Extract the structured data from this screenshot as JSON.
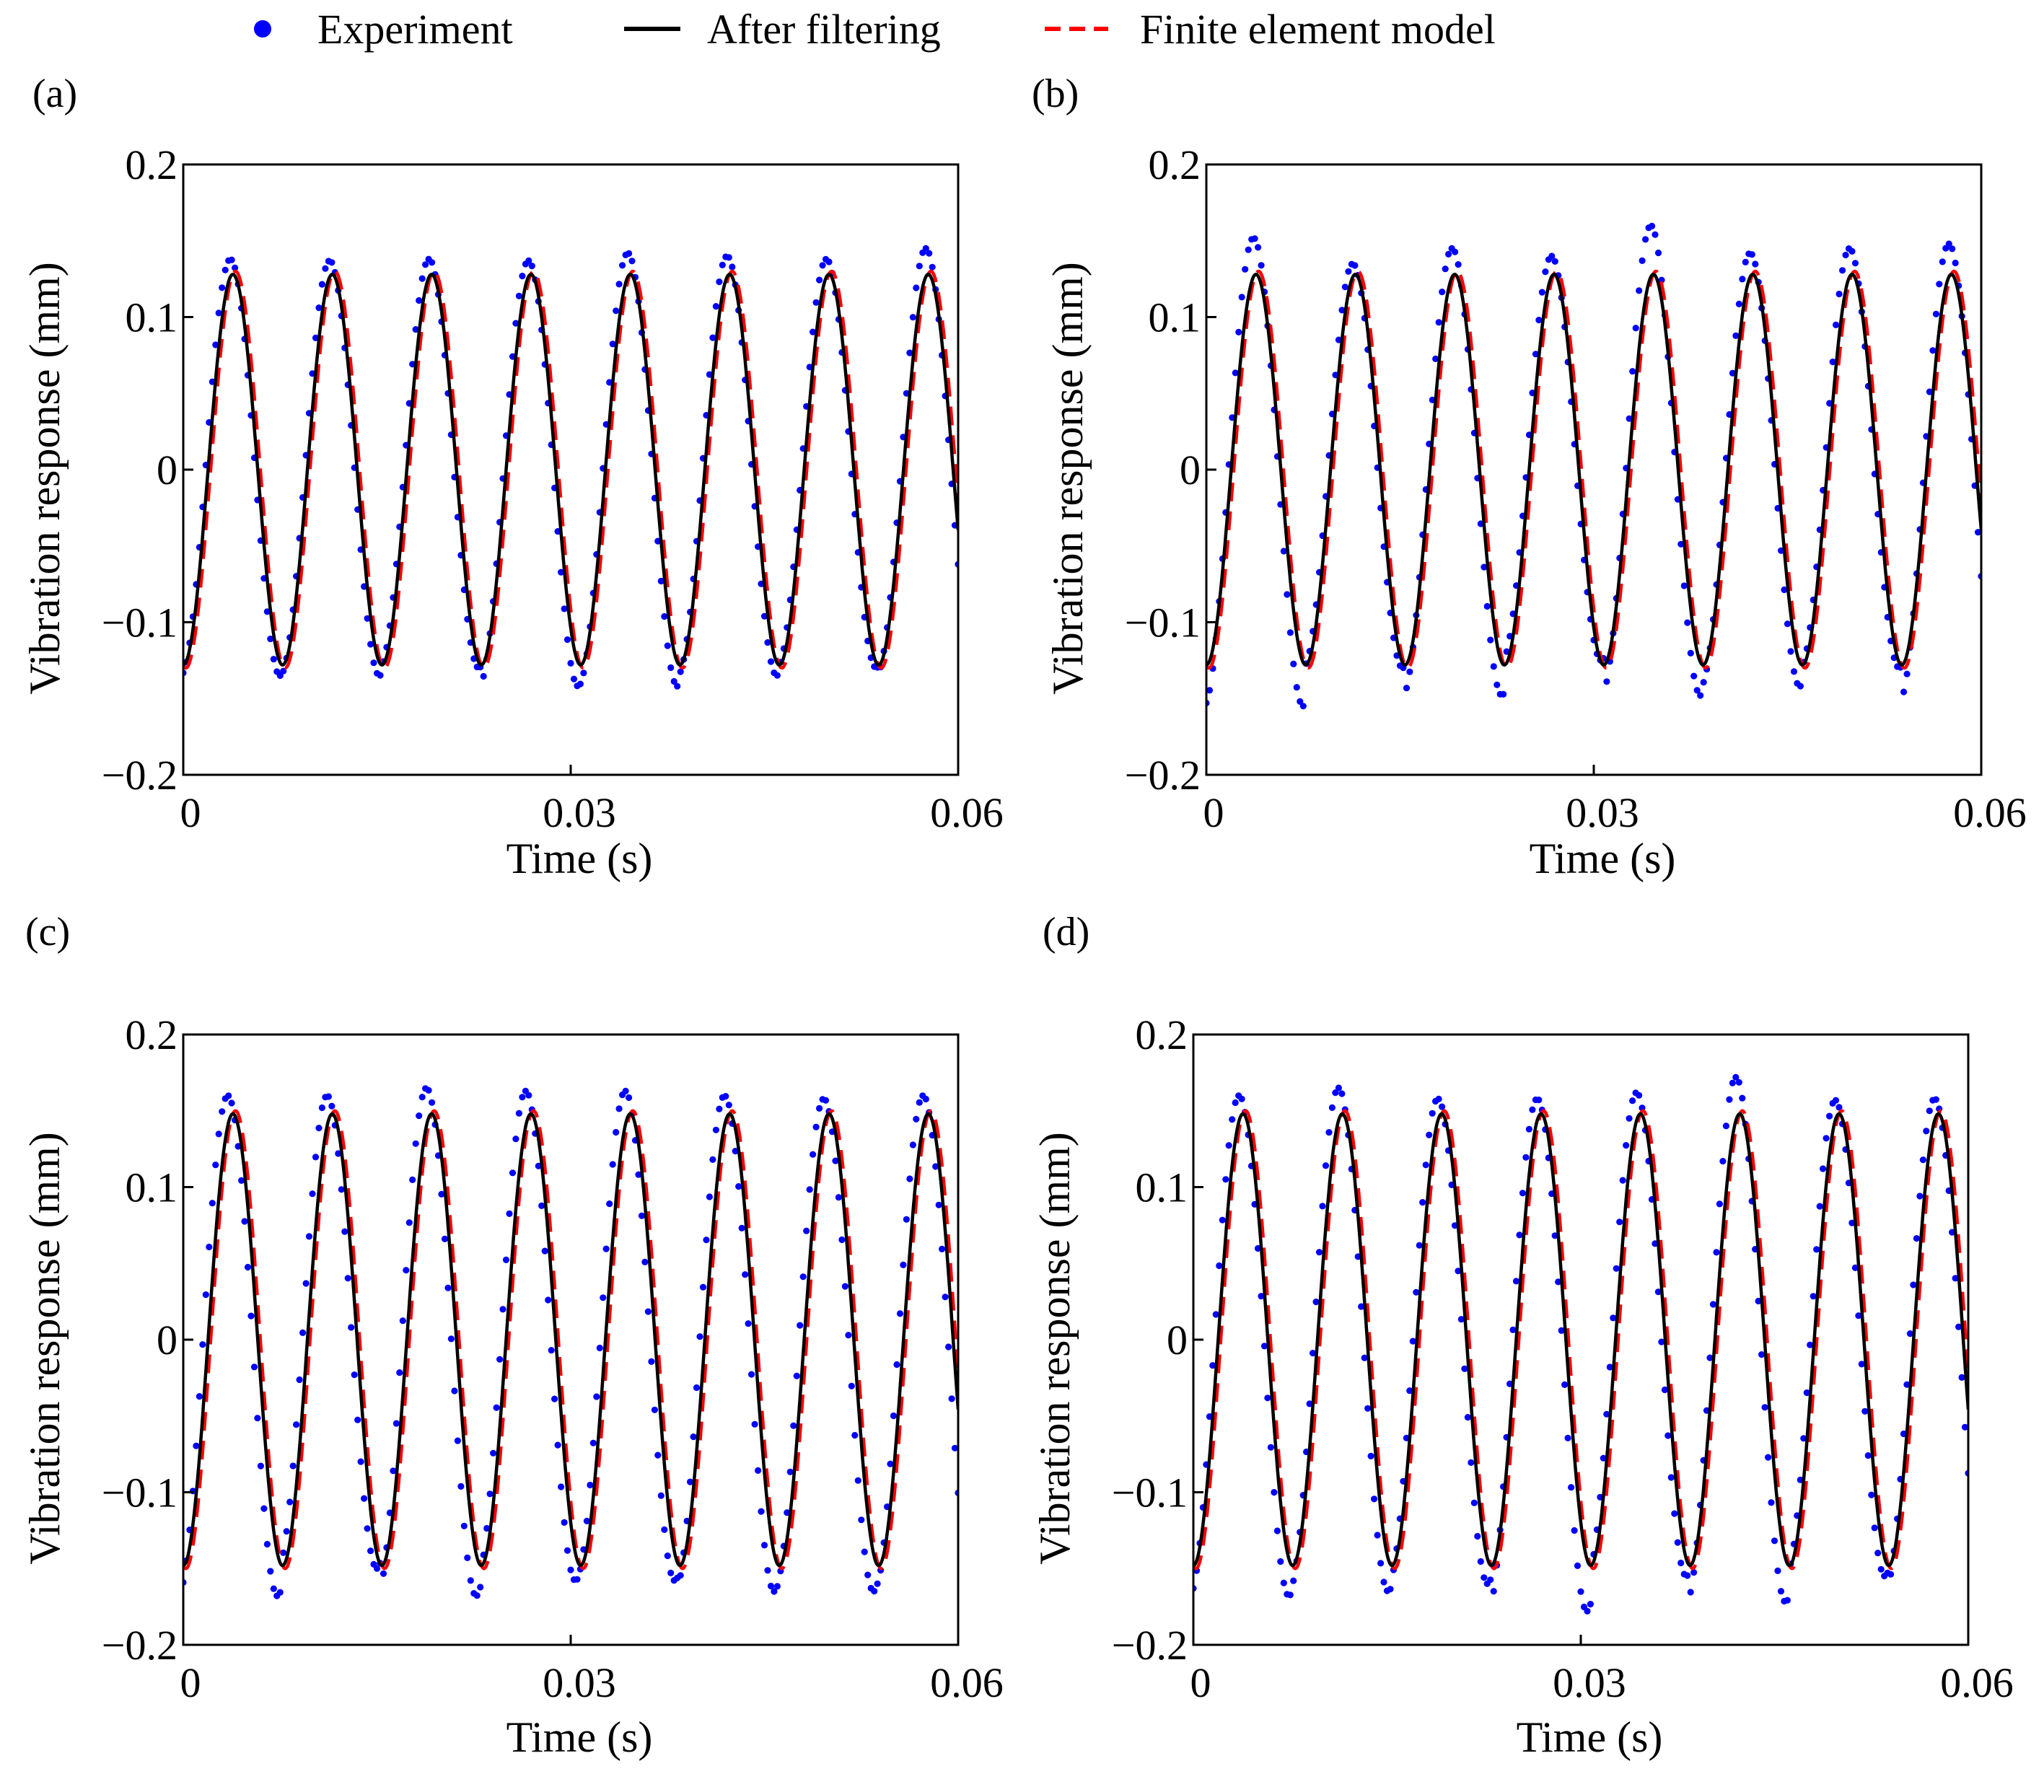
{
  "legend": {
    "items": [
      {
        "key": "experiment",
        "label": "Experiment",
        "color": "#0000ff",
        "style": "dots"
      },
      {
        "key": "filtered",
        "label": "After filtering",
        "color": "#000000",
        "style": "solid"
      },
      {
        "key": "fem",
        "label": "Finite element model",
        "color": "#ff0000",
        "style": "dashed"
      }
    ]
  },
  "chart_data": [
    {
      "type": "line",
      "panel_label": "(a)",
      "xlabel": "Time (s)",
      "ylabel": "Vibration response (mm)",
      "xlim": [
        0,
        0.06
      ],
      "ylim": [
        -0.2,
        0.2
      ],
      "xticks": [
        0,
        0.03,
        0.06
      ],
      "xtick_labels": [
        "0",
        "0.03",
        "0.06"
      ],
      "yticks": [
        0.2,
        0.1,
        0,
        -0.1,
        -0.2
      ],
      "ytick_labels": [
        "0.2",
        "0.1",
        "0",
        "−0.1",
        "−0.2"
      ],
      "frequency_hz": 130,
      "series": [
        {
          "name": "After filtering",
          "amplitude": 0.128,
          "phase_shift_s": 0
        },
        {
          "name": "Finite element model",
          "amplitude": 0.13,
          "phase_shift_s": 0.0002
        },
        {
          "name": "Experiment",
          "amplitude": 0.135,
          "phase_shift_s": -0.0002,
          "sample_interval_s": 0.00025,
          "peaks": [
            0.138,
            0.137,
            0.138,
            0.137,
            0.142,
            0.14,
            0.138,
            0.145
          ],
          "troughs": [
            -0.135,
            -0.135,
            -0.13,
            -0.142,
            -0.142,
            -0.135,
            -0.13,
            -0.135
          ]
        }
      ]
    },
    {
      "type": "line",
      "panel_label": "(b)",
      "xlabel": "Time (s)",
      "ylabel": "Vibration response (mm)",
      "xlim": [
        0,
        0.06
      ],
      "ylim": [
        -0.2,
        0.2
      ],
      "xticks": [
        0,
        0.03,
        0.06
      ],
      "xtick_labels": [
        "0",
        "0.03",
        "0.06"
      ],
      "yticks": [
        0.2,
        0.1,
        0,
        -0.1,
        -0.2
      ],
      "ytick_labels": [
        "0.2",
        "0.1",
        "0",
        "−0.1",
        "−0.2"
      ],
      "frequency_hz": 130,
      "series": [
        {
          "name": "After filtering",
          "amplitude": 0.128,
          "phase_shift_s": 0
        },
        {
          "name": "Finite element model",
          "amplitude": 0.13,
          "phase_shift_s": 0.0002
        },
        {
          "name": "Experiment",
          "amplitude": 0.14,
          "phase_shift_s": -0.0002,
          "sample_interval_s": 0.00025,
          "peaks": [
            0.152,
            0.135,
            0.145,
            0.14,
            0.16,
            0.142,
            0.145,
            0.148
          ],
          "troughs": [
            -0.155,
            -0.13,
            -0.148,
            -0.125,
            -0.148,
            -0.142,
            -0.13,
            -0.152
          ]
        }
      ]
    },
    {
      "type": "line",
      "panel_label": "(c)",
      "xlabel": "Time (s)",
      "ylabel": "Vibration response (mm)",
      "xlim": [
        0,
        0.06
      ],
      "ylim": [
        -0.2,
        0.2
      ],
      "xticks": [
        0,
        0.03,
        0.06
      ],
      "xtick_labels": [
        "0",
        "0.03",
        "0.06"
      ],
      "yticks": [
        0.2,
        0.1,
        0,
        -0.1,
        -0.2
      ],
      "ytick_labels": [
        "0.2",
        "0.1",
        "0",
        "−0.1",
        "−0.2"
      ],
      "frequency_hz": 130,
      "series": [
        {
          "name": "After filtering",
          "amplitude": 0.148,
          "phase_shift_s": 0
        },
        {
          "name": "Finite element model",
          "amplitude": 0.15,
          "phase_shift_s": 0.0002
        },
        {
          "name": "Experiment",
          "amplitude": 0.155,
          "phase_shift_s": -0.0004,
          "sample_interval_s": 0.00025,
          "peaks": [
            0.16,
            0.16,
            0.165,
            0.163,
            0.163,
            0.16,
            0.158,
            0.16
          ],
          "troughs": [
            -0.168,
            -0.15,
            -0.168,
            -0.158,
            -0.158,
            -0.165,
            -0.165,
            -0.168
          ]
        }
      ]
    },
    {
      "type": "line",
      "panel_label": "(d)",
      "xlabel": "Time (s)",
      "ylabel": "Vibration response (mm)",
      "xlim": [
        0,
        0.06
      ],
      "ylim": [
        -0.2,
        0.2
      ],
      "xticks": [
        0,
        0.03,
        0.06
      ],
      "xtick_labels": [
        "0",
        "0.03",
        "0.06"
      ],
      "yticks": [
        0.2,
        0.1,
        0,
        -0.1,
        -0.2
      ],
      "ytick_labels": [
        "0.2",
        "0.1",
        "0",
        "−0.1",
        "−0.2"
      ],
      "frequency_hz": 130,
      "series": [
        {
          "name": "After filtering",
          "amplitude": 0.148,
          "phase_shift_s": 0
        },
        {
          "name": "Finite element model",
          "amplitude": 0.15,
          "phase_shift_s": 0.0002
        },
        {
          "name": "Experiment",
          "amplitude": 0.158,
          "phase_shift_s": -0.0003,
          "sample_interval_s": 0.00025,
          "peaks": [
            0.16,
            0.165,
            0.158,
            0.158,
            0.162,
            0.172,
            0.157,
            0.158
          ],
          "troughs": [
            -0.168,
            -0.165,
            -0.16,
            -0.178,
            -0.155,
            -0.172,
            -0.155,
            -0.165
          ]
        }
      ]
    }
  ]
}
